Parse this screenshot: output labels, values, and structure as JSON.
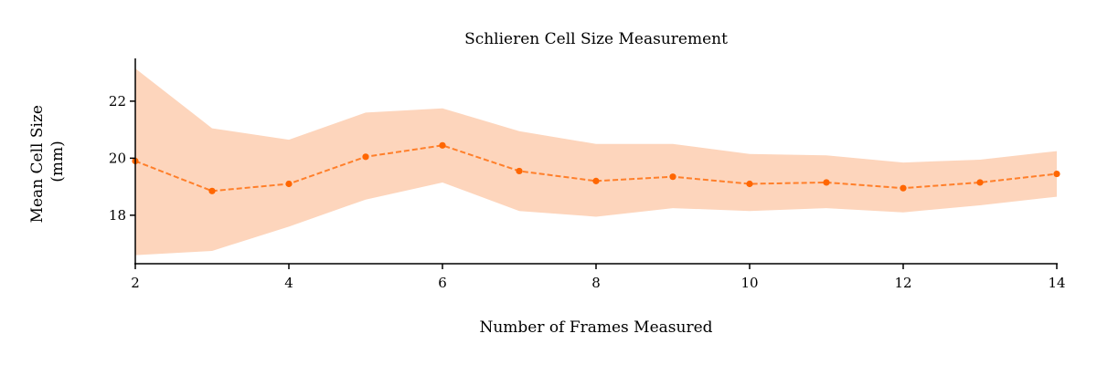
{
  "chart_data": {
    "type": "line",
    "title": "Schlieren Cell Size Measurement",
    "xlabel": "Number of Frames Measured",
    "ylabel": [
      "Mean Cell Size",
      "(mm)"
    ],
    "xlim": [
      2,
      14
    ],
    "ylim": [
      16.3,
      23.5
    ],
    "xticks": [
      2,
      4,
      6,
      8,
      10,
      12,
      14
    ],
    "yticks": [
      18,
      20,
      22
    ],
    "grid": false,
    "colors": {
      "line": "#ff7f2a",
      "marker": "#ff6600",
      "band": "#fdd5bc"
    },
    "series": [
      {
        "x": [
          2,
          3,
          4,
          5,
          6,
          7,
          8,
          9,
          10,
          11,
          12,
          13,
          14
        ],
        "values": [
          19.9,
          18.85,
          19.1,
          20.05,
          20.45,
          19.55,
          19.2,
          19.35,
          19.1,
          19.15,
          18.95,
          19.15,
          19.45
        ],
        "band_upper": [
          23.15,
          21.05,
          20.65,
          21.6,
          21.75,
          20.95,
          20.5,
          20.5,
          20.15,
          20.1,
          19.85,
          19.95,
          20.25
        ],
        "band_lower": [
          16.6,
          16.75,
          17.6,
          18.55,
          19.15,
          18.15,
          17.95,
          18.25,
          18.15,
          18.25,
          18.1,
          18.35,
          18.65
        ]
      }
    ]
  }
}
